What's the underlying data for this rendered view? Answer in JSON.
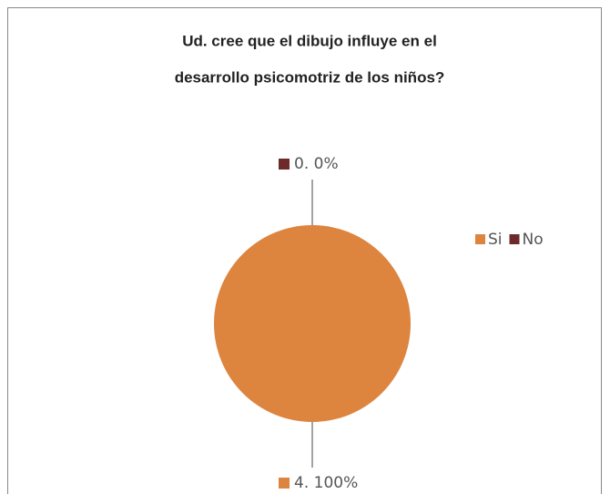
{
  "chart_data": {
    "type": "pie",
    "title": [
      "Ud. cree que el dibujo influye en el",
      "desarrollo psicomotriz de los niños?"
    ],
    "categories": [
      "Si",
      "No"
    ],
    "values": [
      4,
      0
    ],
    "value_labels": [
      "4. 100%",
      "0. 0%"
    ],
    "colors": [
      "#dd843f",
      "#6e2a2a"
    ],
    "legend": "right"
  }
}
